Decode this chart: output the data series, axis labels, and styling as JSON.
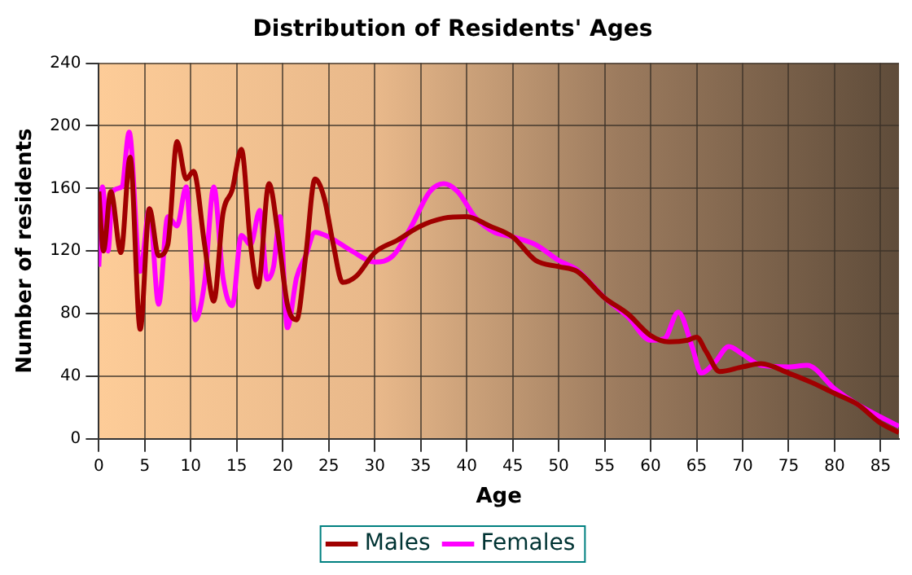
{
  "chart_data": {
    "type": "line",
    "title": "Distribution of Residents' Ages",
    "xlabel": "Age",
    "ylabel": "Number of residents",
    "xlim": [
      0,
      87
    ],
    "xticks": [
      0,
      5,
      10,
      15,
      20,
      25,
      30,
      35,
      40,
      45,
      50,
      55,
      60,
      65,
      70,
      75,
      80,
      85
    ],
    "ylim": [
      0,
      240
    ],
    "yticks": [
      0,
      40,
      80,
      120,
      160,
      200,
      240
    ],
    "grid": true,
    "legend": "bottom",
    "marker": "none",
    "line_style": "solid",
    "series": [
      {
        "name": "Males",
        "color": "#a00000",
        "x": [
          0,
          0.5,
          1.3,
          2.4,
          3.4,
          4.5,
          5.5,
          6.5,
          7.5,
          8.5,
          9.5,
          10.3,
          11.5,
          12.5,
          13.5,
          14.5,
          15.5,
          16.5,
          17.3,
          18.5,
          19.5,
          20.5,
          21.5,
          22.5,
          23.5,
          24.5,
          25.5,
          26.5,
          28,
          30,
          32.5,
          35,
          37.5,
          40,
          42.5,
          45,
          47.5,
          50,
          52,
          55,
          57.5,
          60,
          62,
          64,
          65,
          66,
          67.5,
          70,
          72,
          75,
          77.5,
          80,
          82.5,
          85,
          87
        ],
        "values": [
          158,
          120,
          158,
          119,
          180,
          70,
          147,
          117,
          124,
          190,
          166,
          171,
          124,
          88,
          144,
          159,
          185,
          124,
          97,
          163,
          130,
          86,
          76,
          117,
          166,
          154,
          124,
          100,
          104,
          119,
          127,
          136,
          141,
          142,
          136,
          129,
          114,
          110,
          107,
          90,
          80,
          66,
          62,
          63,
          65,
          56,
          43,
          46,
          48,
          42,
          36,
          29,
          22,
          10,
          4
        ]
      },
      {
        "name": "Females",
        "color": "#ff00ff",
        "x": [
          0,
          0.4,
          1,
          1.5,
          2.5,
          3.3,
          4.5,
          5.5,
          6.5,
          7.5,
          8.5,
          9.5,
          10.5,
          11.5,
          12.5,
          13.5,
          14.5,
          15.5,
          16.5,
          17.5,
          18.3,
          19,
          19.7,
          20.5,
          21.5,
          22.5,
          23.5,
          25,
          27.5,
          30,
          32,
          34,
          36,
          37.5,
          39,
          41,
          43,
          45,
          47.5,
          50,
          52,
          55,
          57.5,
          60,
          61.5,
          63,
          64.5,
          65.5,
          67,
          68.5,
          70,
          72,
          75,
          77,
          80,
          82.5,
          85,
          87
        ],
        "values": [
          110,
          161,
          120,
          158,
          161,
          196,
          107,
          147,
          86,
          142,
          136,
          161,
          76,
          100,
          161,
          103,
          85,
          130,
          124,
          146,
          102,
          110,
          142,
          71,
          103,
          117,
          132,
          129,
          120,
          113,
          117,
          136,
          158,
          163,
          158,
          141,
          132,
          129,
          124,
          114,
          108,
          90,
          78,
          63,
          64,
          81,
          59,
          42,
          49,
          59,
          54,
          47,
          46,
          47,
          32,
          22,
          14,
          8
        ]
      }
    ]
  }
}
